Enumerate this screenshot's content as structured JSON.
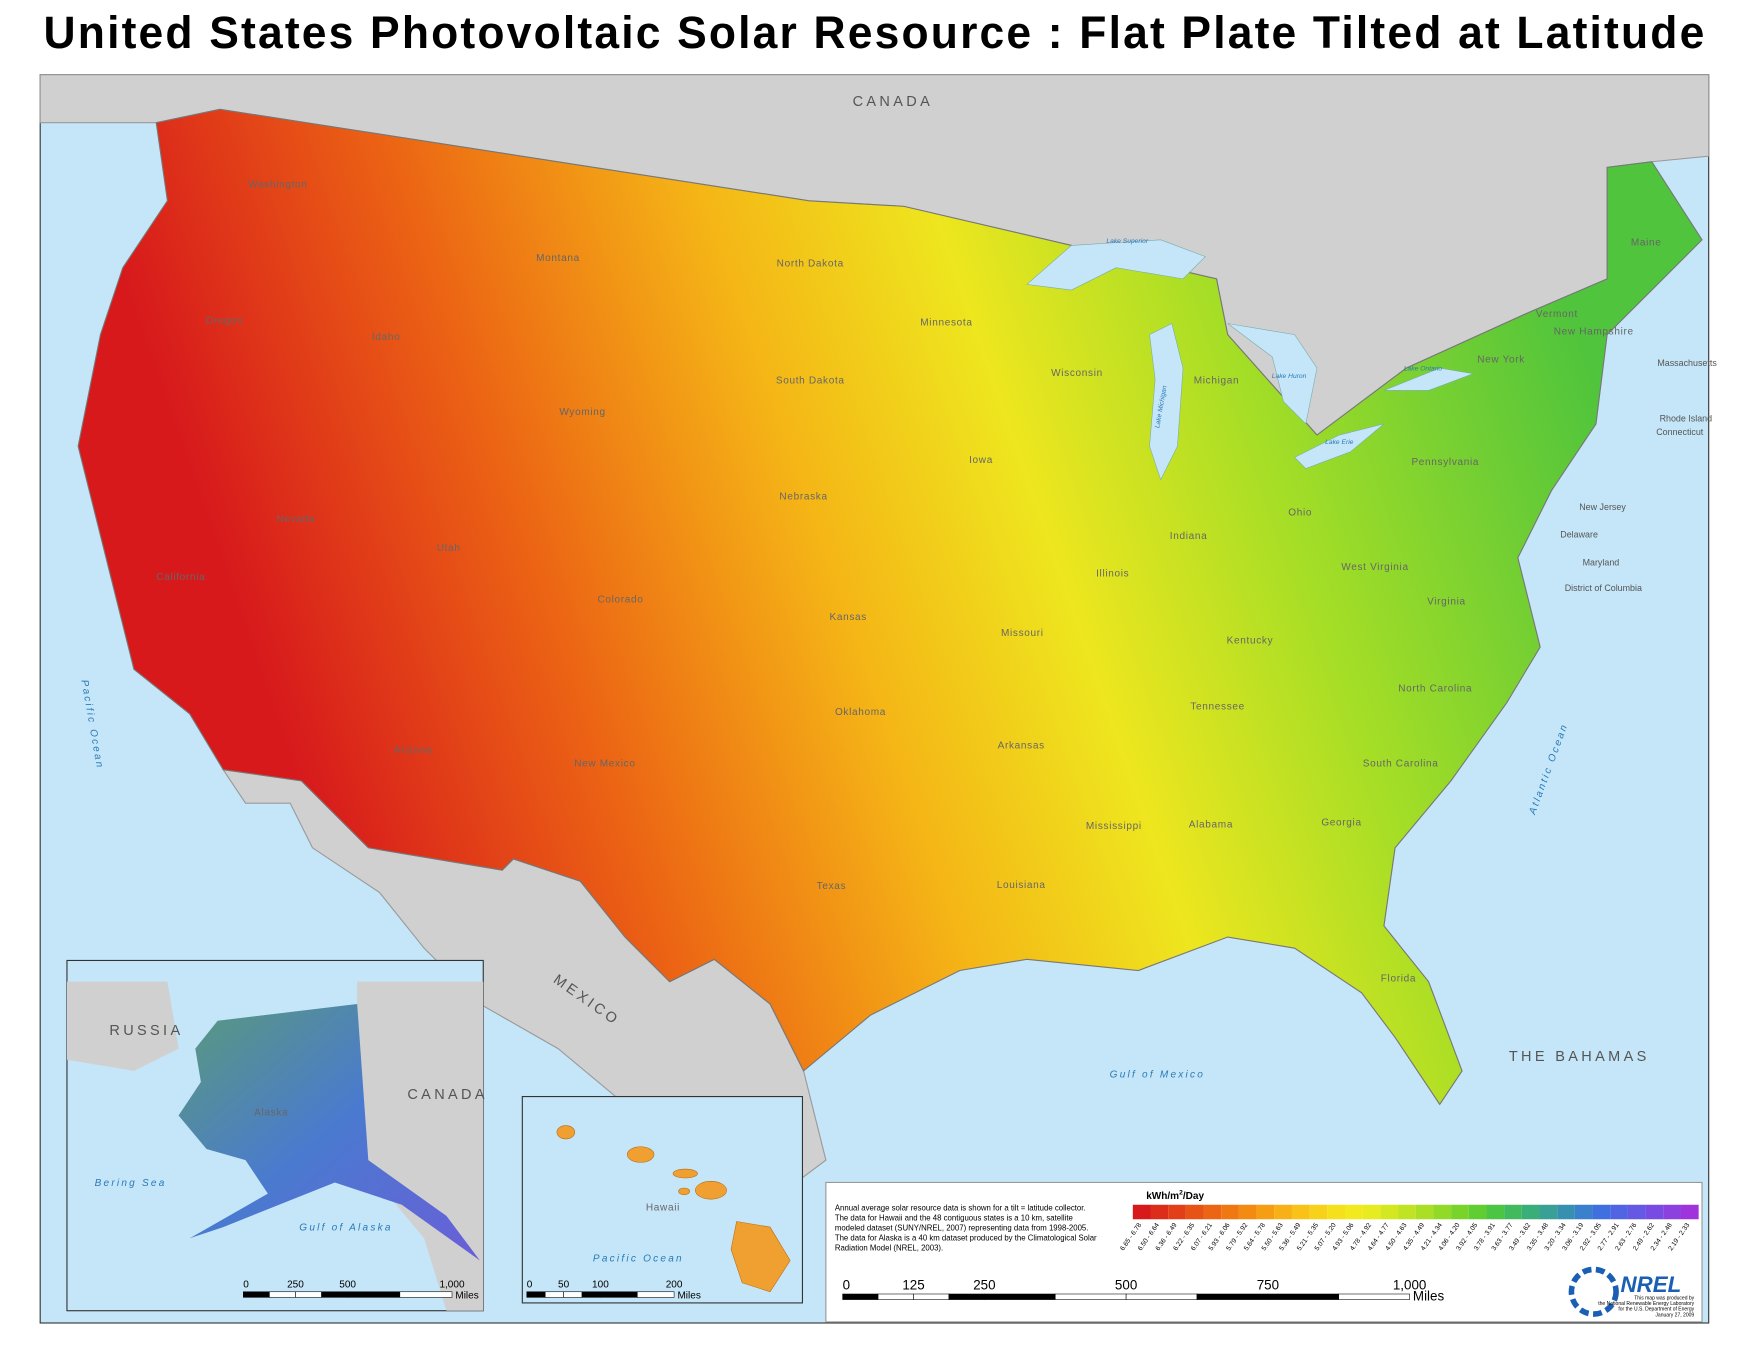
{
  "header": {
    "title": "United States Photovoltaic Solar Resource : Flat Plate Tilted at Latitude"
  },
  "countries": {
    "canada": "CANADA",
    "mexico": "MEXICO",
    "bahamas": "THE BAHAMAS"
  },
  "waters": {
    "pacific": "Pacific Ocean",
    "atlantic": "Atlantic Ocean",
    "gulf": "Gulf of Mexico",
    "superior": "Lake Superior",
    "michigan": "Lake Michigan",
    "huron": "Lake Huron",
    "ontario": "Lake Ontario",
    "erie": "Lake Erie"
  },
  "states": [
    "Washington",
    "Oregon",
    "Idaho",
    "Montana",
    "Wyoming",
    "Nevada",
    "California",
    "Utah",
    "Colorado",
    "Arizona",
    "New Mexico",
    "North Dakota",
    "South Dakota",
    "Nebraska",
    "Kansas",
    "Oklahoma",
    "Texas",
    "Minnesota",
    "Iowa",
    "Missouri",
    "Arkansas",
    "Louisiana",
    "Wisconsin",
    "Illinois",
    "Michigan",
    "Indiana",
    "Ohio",
    "Kentucky",
    "Tennessee",
    "Mississippi",
    "Alabama",
    "Georgia",
    "Florida",
    "South Carolina",
    "North Carolina",
    "Virginia",
    "West Virginia",
    "Pennsylvania",
    "New York",
    "Vermont",
    "New Hampshire",
    "Maine",
    "Massachusetts",
    "Rhode Island",
    "Connecticut",
    "New Jersey",
    "Delaware",
    "Maryland",
    "District of Columbia"
  ],
  "alaska_inset": {
    "russia": "RUSSIA",
    "canada": "CANADA",
    "bering": "Bering Sea",
    "gulf": "Gulf of Alaska",
    "label": "Alaska",
    "scale": [
      "0",
      "250",
      "500",
      "1,000"
    ],
    "unit": "Miles"
  },
  "hawaii_inset": {
    "label": "Hawaii",
    "ocean": "Pacific Ocean",
    "scale": [
      "0",
      "50",
      "100",
      "200"
    ],
    "unit": "Miles"
  },
  "legend": {
    "unit_base": "kWh/m",
    "unit_exp": "2",
    "unit_tail": "/Day",
    "description": [
      "Annual average solar resource data is shown for a tilt = latitude collector.",
      "The data for Hawaii and the 48 contiguous states is a 10 km, satellite",
      "modeled dataset (SUNY/NREL, 2007) representing data from 1998-2005.",
      "The data for Alaska is a 40 km dataset produced by the Climatological Solar",
      "Radiation Model (NREL, 2003)."
    ],
    "items": [
      {
        "range": "6.65 - 6.78",
        "color": "#d7191c"
      },
      {
        "range": "6.50 - 6.64",
        "color": "#dc2c1a"
      },
      {
        "range": "6.36 - 6.49",
        "color": "#e23f18"
      },
      {
        "range": "6.22 - 6.35",
        "color": "#e75216"
      },
      {
        "range": "6.07 - 6.21",
        "color": "#ec6514"
      },
      {
        "range": "5.93 - 6.06",
        "color": "#f07812"
      },
      {
        "range": "5.79 - 5.92",
        "color": "#f38b12"
      },
      {
        "range": "5.64 - 5.78",
        "color": "#f59e14"
      },
      {
        "range": "5.50 - 5.63",
        "color": "#f7b016"
      },
      {
        "range": "5.36 - 5.49",
        "color": "#f8c218"
      },
      {
        "range": "5.21 - 5.35",
        "color": "#f8d21a"
      },
      {
        "range": "5.07 - 5.20",
        "color": "#f6e01c"
      },
      {
        "range": "4.93 - 5.06",
        "color": "#f2ea1e"
      },
      {
        "range": "4.78 - 4.92",
        "color": "#e6ec20"
      },
      {
        "range": "4.64 - 4.77",
        "color": "#d4e822"
      },
      {
        "range": "4.50 - 4.63",
        "color": "#c0e424"
      },
      {
        "range": "4.35 - 4.49",
        "color": "#aadf26"
      },
      {
        "range": "4.21 - 4.34",
        "color": "#92da28"
      },
      {
        "range": "4.06 - 4.20",
        "color": "#78d42a"
      },
      {
        "range": "3.92 - 4.05",
        "color": "#60cd32"
      },
      {
        "range": "3.78 - 3.91",
        "color": "#4cc544"
      },
      {
        "range": "3.63 - 3.77",
        "color": "#40ba5c"
      },
      {
        "range": "3.49 - 3.62",
        "color": "#3aae78"
      },
      {
        "range": "3.35 - 3.48",
        "color": "#38a094"
      },
      {
        "range": "3.20 - 3.34",
        "color": "#3890b0"
      },
      {
        "range": "3.06 - 3.19",
        "color": "#3a80cc"
      },
      {
        "range": "2.92 - 3.05",
        "color": "#4070e0"
      },
      {
        "range": "2.77 - 2.91",
        "color": "#5064e4"
      },
      {
        "range": "2.63 - 2.76",
        "color": "#6458e4"
      },
      {
        "range": "2.49 - 2.62",
        "color": "#784ce2"
      },
      {
        "range": "2.34 - 2.48",
        "color": "#8c40e0"
      },
      {
        "range": "2.19 - 2.33",
        "color": "#a034dc"
      }
    ],
    "scale": [
      "0",
      "125",
      "250",
      "500",
      "750",
      "1,000"
    ],
    "unit": "Miles"
  },
  "credit": {
    "logo": "NREL",
    "lines": [
      "This map was produced by",
      "the National Renewable Energy Laboratory",
      "for the U.S. Department of Energy",
      "January 27, 2009"
    ]
  }
}
